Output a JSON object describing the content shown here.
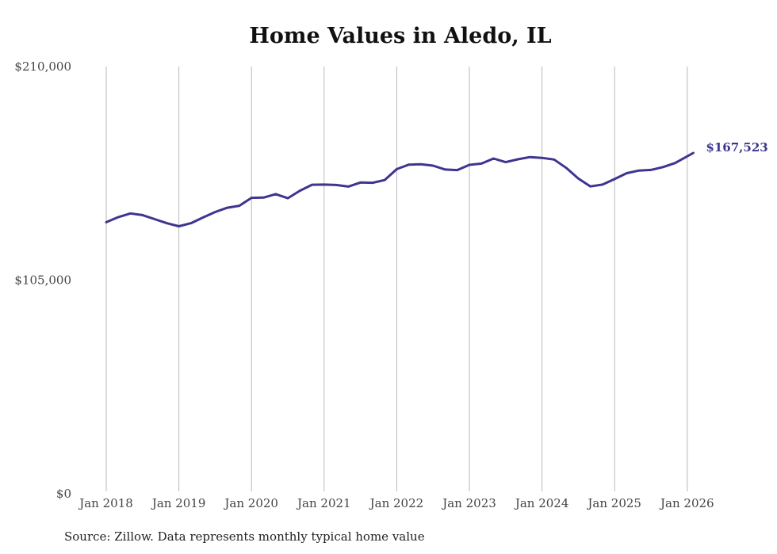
{
  "chart_data": {
    "type": "line",
    "title": "Home Values in Aledo, IL",
    "xlabel": "",
    "ylabel": "",
    "ylim": [
      0,
      210000
    ],
    "xlim": [
      "2018-01",
      "2026-02"
    ],
    "y_ticks": [
      "$0",
      "$105,000",
      "$210,000"
    ],
    "y_tick_values": [
      0,
      105000,
      210000
    ],
    "x_ticks": [
      "Jan 2018",
      "Jan 2019",
      "Jan 2020",
      "Jan 2021",
      "Jan 2022",
      "Jan 2023",
      "Jan 2024",
      "Jan 2025",
      "Jan 2026"
    ],
    "x_tick_dates": [
      "2018-01",
      "2019-01",
      "2020-01",
      "2021-01",
      "2022-01",
      "2023-01",
      "2024-01",
      "2025-01",
      "2026-01"
    ],
    "grid": "vertical",
    "line_color": "#3d3590",
    "end_label": "$167,523",
    "series": [
      {
        "x": [
          "2018-01",
          "2018-03",
          "2018-05",
          "2018-07",
          "2018-09",
          "2018-11",
          "2019-01",
          "2019-03",
          "2019-05",
          "2019-07",
          "2019-09",
          "2019-11",
          "2020-01",
          "2020-03",
          "2020-05",
          "2020-07",
          "2020-09",
          "2020-11",
          "2021-01",
          "2021-03",
          "2021-05",
          "2021-07",
          "2021-09",
          "2021-11",
          "2022-01",
          "2022-03",
          "2022-05",
          "2022-07",
          "2022-09",
          "2022-11",
          "2023-01",
          "2023-03",
          "2023-05",
          "2023-07",
          "2023-09",
          "2023-11",
          "2024-01",
          "2024-03",
          "2024-05",
          "2024-07",
          "2024-09",
          "2024-11",
          "2025-01",
          "2025-03",
          "2025-05",
          "2025-07",
          "2025-09",
          "2025-11",
          "2026-02"
        ],
        "y": [
          133500,
          136000,
          137800,
          137000,
          135000,
          133000,
          131500,
          133000,
          135800,
          138500,
          140600,
          141600,
          145500,
          145600,
          147300,
          145300,
          149000,
          151900,
          152000,
          151800,
          151000,
          153000,
          152900,
          154200,
          159600,
          161800,
          162000,
          161300,
          159400,
          159100,
          161700,
          162300,
          164800,
          163000,
          164400,
          165500,
          165100,
          164300,
          160200,
          155000,
          151100,
          152000,
          154700,
          157600,
          158900,
          159200,
          160600,
          162600,
          167523
        ]
      }
    ],
    "source": "Source: Zillow. Data represents monthly typical home value"
  }
}
